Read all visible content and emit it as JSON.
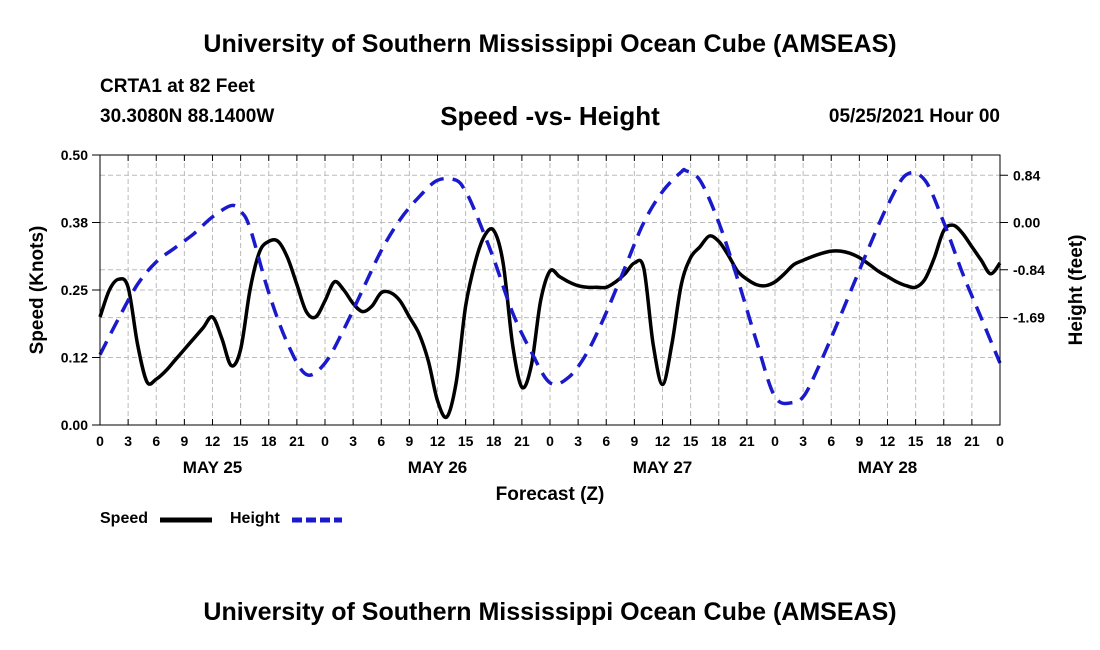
{
  "header": {
    "title": "University of Southern Mississippi Ocean Cube (AMSEAS)",
    "station": "CRTA1 at 82 Feet",
    "coordinates": "30.3080N  88.1400W",
    "subtitle": "Speed -vs- Height",
    "issued": "05/25/2021 Hour 00"
  },
  "footer": {
    "title": "University of Southern Mississippi Ocean Cube (AMSEAS)"
  },
  "legend": {
    "speed_label": "Speed",
    "height_label": "Height"
  },
  "colors": {
    "speed": "#000000",
    "height": "#1a1acc",
    "grid": "#bbbbbb"
  },
  "chart_data": {
    "type": "line",
    "title": "Speed -vs- Height",
    "xlabel": "Forecast (Z)",
    "ylabel": "Speed (Knots)",
    "y2label": "Height (feet)",
    "xlim": [
      0,
      96
    ],
    "ylim": [
      0.0,
      0.5
    ],
    "y2lim": [
      -3.6,
      1.2
    ],
    "x_ticks": [
      0,
      3,
      6,
      9,
      12,
      15,
      18,
      21,
      24,
      27,
      30,
      33,
      36,
      39,
      42,
      45,
      48,
      51,
      54,
      57,
      60,
      63,
      66,
      69,
      72,
      75,
      78,
      81,
      84,
      87,
      90,
      93,
      96
    ],
    "x_tick_labels": [
      "0",
      "3",
      "6",
      "9",
      "12",
      "15",
      "18",
      "21",
      "0",
      "3",
      "6",
      "9",
      "12",
      "15",
      "18",
      "21",
      "0",
      "3",
      "6",
      "9",
      "12",
      "15",
      "18",
      "21",
      "0",
      "3",
      "6",
      "9",
      "12",
      "15",
      "18",
      "21",
      "0"
    ],
    "day_labels": [
      {
        "x": 12,
        "label": "MAY 25"
      },
      {
        "x": 36,
        "label": "MAY 26"
      },
      {
        "x": 60,
        "label": "MAY 27"
      },
      {
        "x": 84,
        "label": "MAY 28"
      }
    ],
    "y_ticks": [
      0.0,
      0.125,
      0.25,
      0.375,
      0.5
    ],
    "y_tick_labels": [
      "0.00",
      "0.12",
      "0.25",
      "0.38",
      "0.50"
    ],
    "y2_ticks": [
      0.84,
      0.0,
      -0.84,
      -1.69
    ],
    "y2_tick_labels": [
      "0.84",
      "0.00",
      "-0.84",
      "-1.69"
    ],
    "legend_position": "bottom-left",
    "series": [
      {
        "name": "Speed",
        "axis": "left",
        "style": "solid",
        "x": [
          0,
          1,
          2,
          3,
          4,
          5,
          6,
          7,
          8,
          9,
          10,
          11,
          12,
          13,
          14,
          15,
          16,
          17,
          18,
          19,
          20,
          21,
          22,
          23,
          24,
          25,
          26,
          27,
          28,
          29,
          30,
          31,
          32,
          33,
          34,
          35,
          36,
          37,
          38,
          39,
          40,
          41,
          42,
          43,
          44,
          45,
          46,
          47,
          48,
          49,
          50,
          51,
          52,
          53,
          54,
          55,
          56,
          57,
          58,
          59,
          60,
          61,
          62,
          63,
          64,
          65,
          66,
          67,
          68,
          69,
          70,
          71,
          72,
          73,
          74,
          75,
          76,
          77,
          78,
          79,
          80,
          81,
          82,
          83,
          84,
          85,
          86,
          87,
          88,
          89,
          90,
          91,
          92,
          93,
          94,
          95,
          96
        ],
        "values": [
          0.2,
          0.25,
          0.27,
          0.255,
          0.15,
          0.08,
          0.085,
          0.1,
          0.12,
          0.14,
          0.16,
          0.18,
          0.2,
          0.16,
          0.11,
          0.14,
          0.25,
          0.32,
          0.34,
          0.34,
          0.31,
          0.26,
          0.21,
          0.2,
          0.23,
          0.265,
          0.25,
          0.225,
          0.21,
          0.22,
          0.245,
          0.245,
          0.23,
          0.2,
          0.17,
          0.12,
          0.045,
          0.015,
          0.08,
          0.22,
          0.3,
          0.35,
          0.36,
          0.3,
          0.15,
          0.07,
          0.11,
          0.23,
          0.285,
          0.275,
          0.265,
          0.258,
          0.255,
          0.255,
          0.255,
          0.265,
          0.28,
          0.3,
          0.29,
          0.15,
          0.075,
          0.15,
          0.26,
          0.31,
          0.33,
          0.35,
          0.34,
          0.315,
          0.285,
          0.27,
          0.26,
          0.258,
          0.265,
          0.28,
          0.297,
          0.305,
          0.312,
          0.318,
          0.322,
          0.322,
          0.318,
          0.31,
          0.298,
          0.285,
          0.275,
          0.265,
          0.258,
          0.255,
          0.27,
          0.31,
          0.36,
          0.37,
          0.355,
          0.33,
          0.305,
          0.28,
          0.3
        ]
      },
      {
        "name": "Height",
        "axis": "right",
        "style": "dashed",
        "x": [
          0,
          2,
          4,
          6,
          8,
          10,
          12,
          14,
          15,
          16,
          18,
          20,
          22,
          24,
          26,
          28,
          30,
          32,
          34,
          36,
          38,
          39,
          40,
          42,
          44,
          46,
          48,
          50,
          52,
          54,
          56,
          58,
          60,
          62,
          62.5,
          64,
          66,
          68,
          70,
          72,
          74,
          75,
          76,
          78,
          80,
          82,
          84,
          86,
          88,
          90,
          92,
          94,
          96
        ],
        "values": [
          -2.35,
          -1.7,
          -1.1,
          -0.7,
          -0.45,
          -0.2,
          0.1,
          0.3,
          0.2,
          -0.1,
          -1.25,
          -2.15,
          -2.7,
          -2.5,
          -1.9,
          -1.2,
          -0.5,
          0.05,
          0.45,
          0.75,
          0.75,
          0.55,
          0.2,
          -0.65,
          -1.6,
          -2.3,
          -2.85,
          -2.75,
          -2.3,
          -1.6,
          -0.8,
          0.0,
          0.55,
          0.9,
          0.92,
          0.75,
          0.0,
          -1.0,
          -2.1,
          -3.1,
          -3.2,
          -3.1,
          -2.8,
          -2.05,
          -1.25,
          -0.45,
          0.3,
          0.85,
          0.75,
          0.0,
          -0.9,
          -1.7,
          -2.5
        ]
      }
    ]
  }
}
